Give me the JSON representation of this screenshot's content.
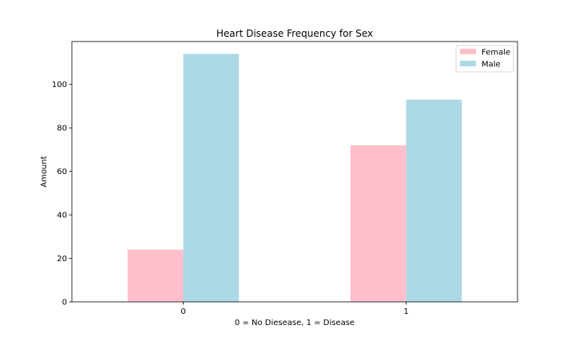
{
  "chart_data": {
    "type": "bar",
    "title": "Heart Disease Frequency for Sex",
    "xlabel": "0 = No Diesease, 1 = Disease",
    "ylabel": "Amount",
    "categories": [
      "0",
      "1"
    ],
    "series": [
      {
        "name": "Female",
        "values": [
          24,
          72
        ],
        "color": "#ffc0cb"
      },
      {
        "name": "Male",
        "values": [
          114,
          93
        ],
        "color": "#add8e6"
      }
    ],
    "ylim": [
      0,
      119.7
    ],
    "yticks": [
      0,
      20,
      40,
      60,
      80,
      100
    ],
    "grid": false,
    "legend": "top-right"
  }
}
